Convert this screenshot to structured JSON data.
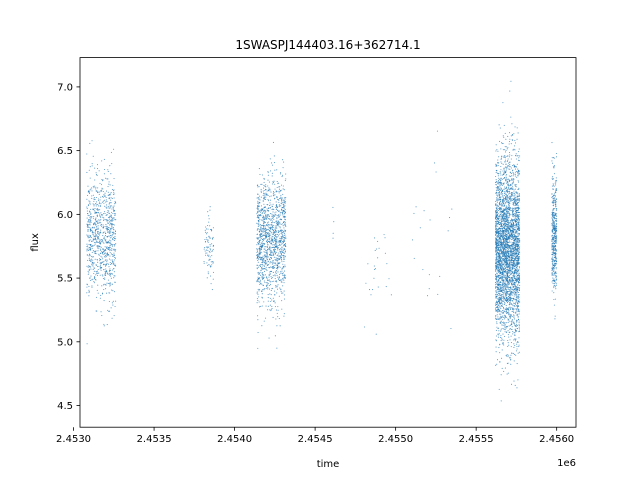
{
  "chart_data": {
    "type": "scatter",
    "title": "1SWASPJ144403.16+362714.1",
    "xlabel": "time",
    "ylabel": "flux",
    "x_offset_label": "1e6",
    "xlim": [
      2.45304,
      2.45612
    ],
    "ylim": [
      4.33,
      7.23
    ],
    "x_ticks": [
      2.453,
      2.4535,
      2.454,
      2.4545,
      2.455,
      2.4555,
      2.456
    ],
    "x_tick_labels": [
      "2.4530",
      "2.4535",
      "2.4540",
      "2.4545",
      "2.4550",
      "2.4555",
      "2.4560"
    ],
    "y_ticks": [
      4.5,
      5.0,
      5.5,
      6.0,
      6.5,
      7.0
    ],
    "y_tick_labels": [
      "4.5",
      "5.0",
      "5.5",
      "6.0",
      "6.5",
      "7.0"
    ],
    "grid": false,
    "point_color": "#1f77b4",
    "clusters": [
      {
        "x_center": 2.453172,
        "x_spread": 9e-05,
        "y_mean": 5.82,
        "y_sd": 0.24,
        "n": 900
      },
      {
        "x_center": 2.45384,
        "x_spread": 3e-05,
        "y_mean": 5.75,
        "y_sd": 0.13,
        "n": 90
      },
      {
        "x_center": 2.454228,
        "x_spread": 9e-05,
        "y_mean": 5.78,
        "y_sd": 0.25,
        "n": 1300
      },
      {
        "x_center": 2.4546,
        "x_spread": 3e-05,
        "y_mean": 5.9,
        "y_sd": 0.12,
        "n": 4
      },
      {
        "x_center": 2.45489,
        "x_spread": 9e-05,
        "y_mean": 5.55,
        "y_sd": 0.25,
        "n": 25
      },
      {
        "x_center": 2.45523,
        "x_spread": 0.00013,
        "y_mean": 5.9,
        "y_sd": 0.3,
        "n": 20
      },
      {
        "x_center": 2.455695,
        "x_spread": 7.5e-05,
        "y_mean": 5.72,
        "y_sd": 0.35,
        "n": 3400
      },
      {
        "x_center": 2.455985,
        "x_spread": 1.5e-05,
        "y_mean": 5.85,
        "y_sd": 0.24,
        "n": 450
      }
    ]
  }
}
